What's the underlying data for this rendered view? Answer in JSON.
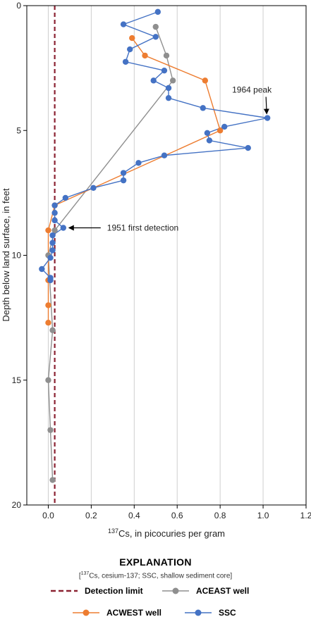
{
  "chart_data": {
    "type": "line",
    "xlabel_superscript": "137",
    "xlabel": "Cs, in picocuries per gram",
    "ylabel": "Depth below land surface, in feet",
    "xlim": [
      -0.1,
      1.2
    ],
    "ylim": [
      0,
      20
    ],
    "y_inverted": true,
    "x_ticks": [
      0.0,
      0.2,
      0.4,
      0.6,
      0.8,
      1.0,
      1.2
    ],
    "x_tick_labels": [
      "0.0",
      "0.2",
      "0.4",
      "0.6",
      "0.8",
      "1.0",
      "1.2"
    ],
    "y_ticks": [
      0,
      5,
      10,
      15,
      20
    ],
    "y_tick_labels": [
      "0",
      "5",
      "10",
      "15",
      "20"
    ],
    "grid": "vertical",
    "detection_limit": 0.03,
    "series": [
      {
        "name": "ACEAST well",
        "color": "#8f8f8f",
        "points": [
          [
            0.5,
            0.85
          ],
          [
            0.55,
            2.0
          ],
          [
            0.58,
            3.0
          ],
          [
            0.03,
            9.0
          ],
          [
            0.0,
            10.0
          ],
          [
            0.02,
            13.0
          ],
          [
            0.0,
            15.0
          ],
          [
            0.01,
            17.0
          ],
          [
            0.02,
            19.0
          ]
        ]
      },
      {
        "name": "ACWEST well",
        "color": "#ed7d31",
        "points": [
          [
            0.39,
            1.3
          ],
          [
            0.45,
            2.0
          ],
          [
            0.73,
            3.0
          ],
          [
            0.8,
            5.0
          ],
          [
            0.03,
            8.0
          ],
          [
            0.0,
            9.0
          ],
          [
            0.0,
            11.0
          ],
          [
            0.0,
            12.0
          ],
          [
            0.0,
            12.7
          ]
        ]
      },
      {
        "name": "SSC",
        "color": "#4472c4",
        "points": [
          [
            0.51,
            0.25
          ],
          [
            0.35,
            0.75
          ],
          [
            0.5,
            1.25
          ],
          [
            0.38,
            1.75
          ],
          [
            0.36,
            2.25
          ],
          [
            0.54,
            2.6
          ],
          [
            0.49,
            3.0
          ],
          [
            0.56,
            3.3
          ],
          [
            0.56,
            3.7
          ],
          [
            0.72,
            4.1
          ],
          [
            1.02,
            4.5
          ],
          [
            0.82,
            4.85
          ],
          [
            0.74,
            5.1
          ],
          [
            0.75,
            5.4
          ],
          [
            0.93,
            5.7
          ],
          [
            0.54,
            6.0
          ],
          [
            0.42,
            6.3
          ],
          [
            0.35,
            6.7
          ],
          [
            0.35,
            7.0
          ],
          [
            0.21,
            7.3
          ],
          [
            0.08,
            7.7
          ],
          [
            0.03,
            8.0
          ],
          [
            0.03,
            8.3
          ],
          [
            0.03,
            8.6
          ],
          [
            0.07,
            8.9
          ],
          [
            0.02,
            9.2
          ],
          [
            0.02,
            9.5
          ],
          [
            0.02,
            9.8
          ],
          [
            0.01,
            10.1
          ],
          [
            -0.03,
            10.55
          ],
          [
            0.01,
            10.9
          ],
          [
            0.01,
            11.0
          ]
        ]
      }
    ],
    "annotations": [
      {
        "text": "1964 peak",
        "x": 1.02,
        "y": 4.5
      },
      {
        "text": "1951 first detection",
        "x": 0.07,
        "y": 8.9
      }
    ]
  },
  "legend": {
    "title": "EXPLANATION",
    "note_prefix": "[",
    "note_superscript": "137",
    "note_rest": "Cs, cesium-137; SSC, shallow sediment core]",
    "detection_limit_label": "Detection limit",
    "aceast_label": "ACEAST well",
    "acwest_label": "ACWEST well",
    "ssc_label": "SSC",
    "detection_color": "#8b2232"
  }
}
